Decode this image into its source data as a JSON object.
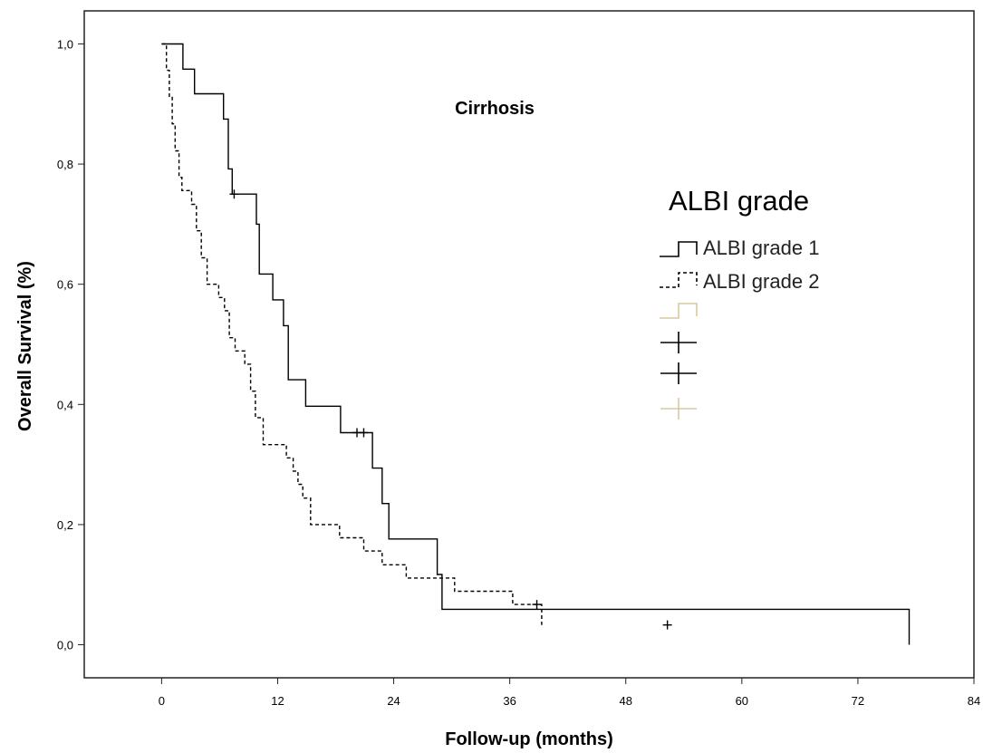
{
  "chart_data": {
    "type": "line",
    "subtype": "kaplan-meier step",
    "annotation": "Cirrhosis",
    "xlabel": "Follow-up (months)",
    "ylabel": "Overall Survival (%)",
    "xlim": [
      -8,
      84
    ],
    "ylim": [
      -0.055,
      1.055
    ],
    "xticks": [
      0,
      12,
      24,
      36,
      48,
      60,
      72,
      84
    ],
    "xtick_labels": [
      "0",
      "12",
      "24",
      "36",
      "48",
      "60",
      "72",
      "84"
    ],
    "yticks": [
      0,
      0.2,
      0.4,
      0.6,
      0.8,
      1.0
    ],
    "ytick_labels": [
      "0,0",
      "0,2",
      "0,4",
      "0,6",
      "0,8",
      "1,0"
    ],
    "grid": false,
    "legend": {
      "title": "ALBI grade",
      "position": "right",
      "entries": [
        {
          "label": "ALBI grade 1",
          "marker": "step",
          "style": "solid",
          "color": "#000000"
        },
        {
          "label": "ALBI grade 2",
          "marker": "step",
          "style": "dashed",
          "color": "#000000"
        },
        {
          "label": "",
          "marker": "step",
          "style": "solid",
          "color": "#d7c8a0"
        },
        {
          "label": "",
          "marker": "cross",
          "style": "solid",
          "color": "#000000"
        },
        {
          "label": "",
          "marker": "cross",
          "style": "solid",
          "color": "#000000"
        },
        {
          "label": "",
          "marker": "cross",
          "style": "solid",
          "color": "#d7c8a0"
        }
      ]
    },
    "series": [
      {
        "name": "ALBI grade 1",
        "style": "solid",
        "color": "#000000",
        "x": [
          0,
          2.2,
          3.4,
          6.4,
          6.9,
          7.3,
          8.8,
          9.8,
          10.1,
          11.5,
          12.6,
          13.1,
          14.9,
          18.5,
          21.8,
          22.8,
          23.5,
          28.5,
          29.0,
          77.3
        ],
        "y": [
          1.0,
          0.958,
          0.917,
          0.875,
          0.792,
          0.75,
          0.75,
          0.7,
          0.617,
          0.574,
          0.531,
          0.441,
          0.397,
          0.353,
          0.294,
          0.235,
          0.176,
          0.117,
          0.059,
          0.0
        ],
        "censored_x": [
          7.5,
          20.2,
          20.9
        ],
        "censored_y": [
          0.75,
          0.353,
          0.353
        ]
      },
      {
        "name": "ALBI grade 2",
        "style": "dashed",
        "color": "#000000",
        "x": [
          0,
          0.5,
          0.8,
          1.1,
          1.4,
          1.8,
          2.1,
          3.1,
          3.6,
          4.1,
          4.7,
          5.9,
          6.5,
          7.0,
          7.6,
          8.6,
          9.2,
          9.7,
          10.5,
          12.9,
          13.6,
          14.1,
          14.6,
          15.4,
          17.6,
          18.4,
          19.6,
          20.9,
          22.8,
          25.3,
          27.8,
          30.3,
          36.3,
          39.3
        ],
        "y": [
          1.0,
          0.956,
          0.911,
          0.867,
          0.822,
          0.778,
          0.756,
          0.733,
          0.689,
          0.644,
          0.6,
          0.578,
          0.556,
          0.511,
          0.489,
          0.467,
          0.422,
          0.378,
          0.333,
          0.311,
          0.289,
          0.267,
          0.244,
          0.2,
          0.2,
          0.178,
          0.178,
          0.156,
          0.133,
          0.111,
          0.111,
          0.089,
          0.067,
          0.033
        ],
        "censored_x": [
          38.8,
          52.3
        ],
        "censored_y": [
          0.067,
          0.033
        ]
      }
    ]
  }
}
